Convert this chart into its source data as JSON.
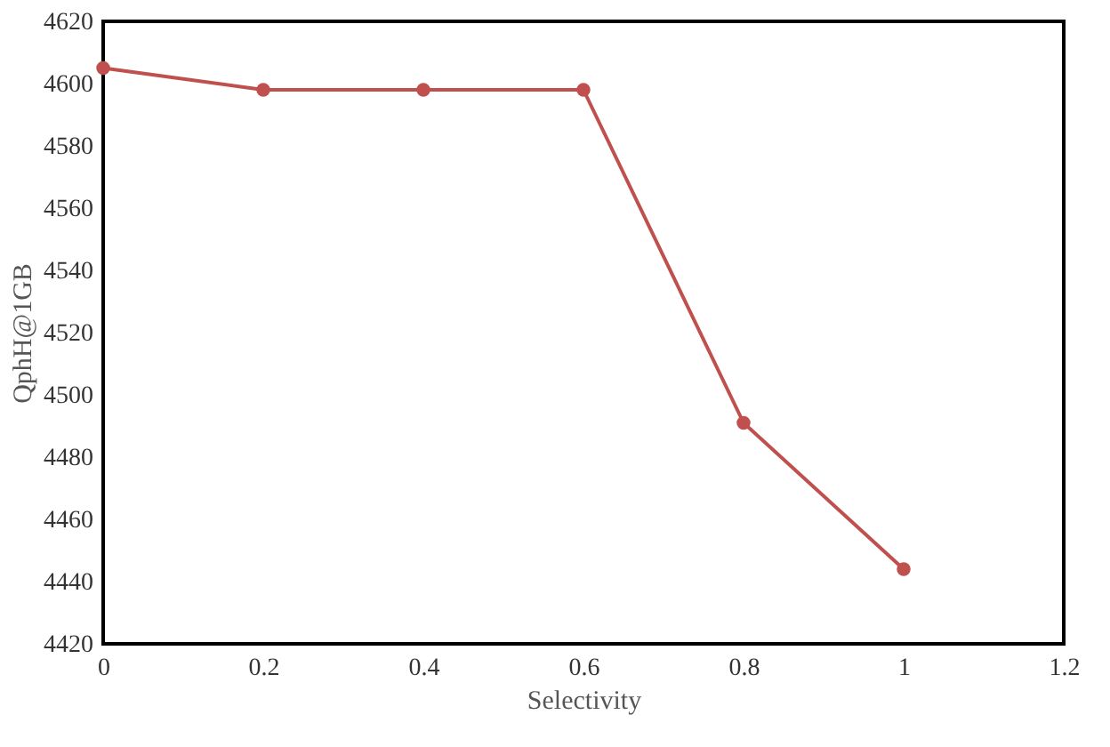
{
  "chart_data": {
    "type": "line",
    "xlabel": "Selectivity",
    "ylabel": "QphH@1GB",
    "x": [
      0,
      0.2,
      0.4,
      0.6,
      0.8,
      1
    ],
    "series": [
      {
        "color": "#c0504d",
        "values": [
          4605,
          4598,
          4598,
          4598,
          4491,
          4444
        ]
      }
    ],
    "xlim": [
      0,
      1.2
    ],
    "xticks": [
      0,
      0.2,
      0.4,
      0.6,
      0.8,
      1,
      1.2
    ],
    "ylim": [
      4420,
      4620
    ],
    "yticks": [
      4420,
      4440,
      4460,
      4480,
      4500,
      4520,
      4540,
      4560,
      4580,
      4600,
      4620
    ],
    "grid": false,
    "marker": "circle",
    "line_style": "solid"
  }
}
